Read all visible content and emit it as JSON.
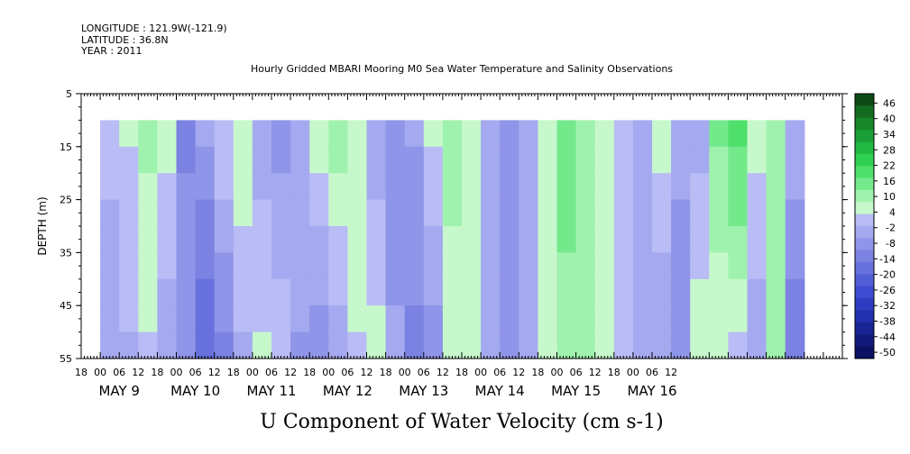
{
  "header": {
    "longitude": "LONGITUDE : 121.9W(-121.9)",
    "latitude": "LATITUDE : 36.8N",
    "year": "YEAR : 2011",
    "title": "Hourly Gridded MBARI Mooring M0 Sea Water Temperature and Salinity Observations"
  },
  "chart_data": {
    "type": "heatmap",
    "title": "Hourly Gridded MBARI Mooring M0 Sea Water Temperature and Salinity Observations",
    "xlabel": "U Component of Water Velocity (cm s-1)",
    "ylabel": "DEPTH (m)",
    "ylim": [
      55,
      5
    ],
    "y_ticks": [
      "5",
      "15",
      "25",
      "35",
      "45",
      "55"
    ],
    "x_hour_ticks": [
      "18",
      "00",
      "06",
      "12",
      "18",
      "00",
      "06",
      "12",
      "18",
      "00",
      "06",
      "12",
      "18",
      "00",
      "06",
      "12",
      "18",
      "00",
      "06",
      "12",
      "18",
      "00",
      "06",
      "12",
      "18",
      "00",
      "06",
      "12",
      "18",
      "00",
      "06",
      "12"
    ],
    "x_date_labels": [
      "MAY  9",
      "MAY 10",
      "MAY 11",
      "MAY 12",
      "MAY 13",
      "MAY 14",
      "MAY 15",
      "MAY 16"
    ],
    "data_depth_range": [
      10,
      55
    ],
    "colorbar_levels": [
      "46",
      "40",
      "34",
      "28",
      "22",
      "16",
      "10",
      "4",
      "-2",
      "-8",
      "-14",
      "-20",
      "-26",
      "-32",
      "-38",
      "-44",
      "-50"
    ],
    "colorbar_colors": [
      "#0e4a16",
      "#136b20",
      "#17862a",
      "#1b9e35",
      "#21b843",
      "#2fd052",
      "#4fe06c",
      "#74e98c",
      "#9ff2ae",
      "#c6f8cc",
      "#b9bcf5",
      "#a5a9ef",
      "#8f95e8",
      "#7b82e2",
      "#6770dc",
      "#525ed6",
      "#3f4bd0",
      "#2f3cc2",
      "#2330ad",
      "#1a2594",
      "#121b7b",
      "#0a1062"
    ],
    "columns": [
      {
        "hour": 0,
        "top": -1,
        "bottom": -4
      },
      {
        "hour": 6,
        "top": 3,
        "bottom": -2
      },
      {
        "hour": 12,
        "top": 8,
        "bottom": 2
      },
      {
        "hour": 18,
        "top": 4,
        "bottom": -5
      },
      {
        "hour": 24,
        "top": -12,
        "bottom": -8
      },
      {
        "hour": 30,
        "top": -6,
        "bottom": -20
      },
      {
        "hour": 36,
        "top": 2,
        "bottom": -12
      },
      {
        "hour": 42,
        "top": 6,
        "bottom": -3
      },
      {
        "hour": 48,
        "top": -4,
        "bottom": 3
      },
      {
        "hour": 54,
        "top": -9,
        "bottom": 2
      },
      {
        "hour": 60,
        "top": -3,
        "bottom": -7
      },
      {
        "hour": 66,
        "top": 5,
        "bottom": -10
      },
      {
        "hour": 72,
        "top": 9,
        "bottom": -4
      },
      {
        "hour": 78,
        "top": 7,
        "bottom": 2
      },
      {
        "hour": 84,
        "top": -5,
        "bottom": 4
      },
      {
        "hour": 90,
        "top": -10,
        "bottom": -6
      },
      {
        "hour": 96,
        "top": -6,
        "bottom": -12
      },
      {
        "hour": 102,
        "top": 3,
        "bottom": -8
      },
      {
        "hour": 108,
        "top": 8,
        "bottom": 6
      },
      {
        "hour": 114,
        "top": 4,
        "bottom": 3
      },
      {
        "hour": 120,
        "top": -3,
        "bottom": -4
      },
      {
        "hour": 126,
        "top": -9,
        "bottom": -8
      },
      {
        "hour": 132,
        "top": -5,
        "bottom": -4
      },
      {
        "hour": 138,
        "top": 6,
        "bottom": 3
      },
      {
        "hour": 144,
        "top": 14,
        "bottom": 10
      },
      {
        "hour": 150,
        "top": 10,
        "bottom": 8
      },
      {
        "hour": 156,
        "top": 6,
        "bottom": 4
      },
      {
        "hour": 162,
        "top": 2,
        "bottom": 1
      },
      {
        "hour": 168,
        "top": -4,
        "bottom": -3
      },
      {
        "hour": 174,
        "top": 4,
        "bottom": -6
      },
      {
        "hour": 180,
        "top": -6,
        "bottom": -8
      },
      {
        "hour": 186,
        "top": -3,
        "bottom": 5
      },
      {
        "hour": 192,
        "top": 12,
        "bottom": 3
      },
      {
        "hour": 198,
        "top": 18,
        "bottom": 2
      },
      {
        "hour": 204,
        "top": 5,
        "bottom": -6
      },
      {
        "hour": 210,
        "top": 10,
        "bottom": 9
      },
      {
        "hour": 216,
        "top": -4,
        "bottom": -14
      }
    ]
  }
}
